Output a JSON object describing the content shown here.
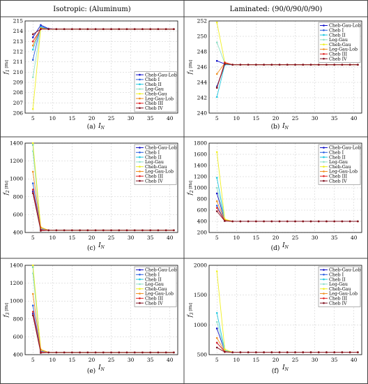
{
  "headers": [
    "Isotropic: (Aluminum)",
    "Laminated: (90/0/90/0/90)"
  ],
  "legend": [
    "Cheb-Gau-Lob",
    "Cheb I",
    "Cheb II",
    "Leg-Gau",
    "Cheb-Gau",
    "Leg-Gau-Lob",
    "Cheb III",
    "Cheb IV"
  ],
  "colors": [
    "#1010c8",
    "#2a5fe0",
    "#20c8e0",
    "#90e0c8",
    "#f0f020",
    "#f09020",
    "#e02020",
    "#801020"
  ],
  "chart_data": [
    {
      "type": "line",
      "panel_label": "(a)",
      "xlabel": "I_N",
      "ylabel": "f1 [Hz]",
      "xlim": [
        3,
        42
      ],
      "ylim": [
        206,
        215
      ],
      "xticks": [
        5,
        10,
        15,
        20,
        25,
        30,
        35,
        40
      ],
      "yticks": [
        206,
        207,
        208,
        209,
        210,
        211,
        212,
        213,
        214,
        215
      ],
      "legend_position": "bottom-right",
      "x": [
        5,
        7,
        9,
        11,
        13,
        15,
        17,
        19,
        21,
        23,
        25,
        27,
        29,
        31,
        33,
        35,
        37,
        39,
        41
      ],
      "series": [
        {
          "name": "Cheb-Gau-Lob",
          "start": [
            213.4,
            214.6,
            214.25
          ],
          "final": 214.2
        },
        {
          "name": "Cheb I",
          "start": [
            211.2,
            214.5,
            214.2
          ],
          "final": 214.2
        },
        {
          "name": "Cheb II",
          "start": [
            212.2,
            214.4,
            214.2
          ],
          "final": 214.2
        },
        {
          "name": "Leg-Gau",
          "start": [
            209.5,
            214.3,
            214.2
          ],
          "final": 214.2
        },
        {
          "name": "Cheb-Gau",
          "start": [
            206.4,
            214.3,
            214.2
          ],
          "final": 214.2
        },
        {
          "name": "Leg-Gau-Lob",
          "start": [
            212.6,
            214.3,
            214.2
          ],
          "final": 214.2
        },
        {
          "name": "Cheb III",
          "start": [
            213.0,
            214.2,
            214.2
          ],
          "final": 214.2
        },
        {
          "name": "Cheb IV",
          "start": [
            213.7,
            214.2,
            214.2
          ],
          "final": 214.2
        }
      ]
    },
    {
      "type": "line",
      "panel_label": "(b)",
      "xlabel": "I_N",
      "ylabel": "f1 [Hz]",
      "xlim": [
        3,
        42
      ],
      "ylim": [
        240,
        252
      ],
      "xticks": [
        5,
        10,
        15,
        20,
        25,
        30,
        35,
        40
      ],
      "yticks": [
        240,
        242,
        244,
        246,
        248,
        250,
        252
      ],
      "legend_position": "top-right",
      "x": [
        5,
        7,
        9,
        11,
        13,
        15,
        17,
        19,
        21,
        23,
        25,
        27,
        29,
        31,
        33,
        35,
        37,
        39,
        41
      ],
      "series": [
        {
          "name": "Cheb-Gau-Lob",
          "start": [
            246.8,
            246.4,
            246.3
          ],
          "final": 246.3
        },
        {
          "name": "Cheb I",
          "start": [
            243.5,
            246.3,
            246.3
          ],
          "final": 246.3
        },
        {
          "name": "Cheb II",
          "start": [
            242.1,
            246.3,
            246.3
          ],
          "final": 246.3
        },
        {
          "name": "Leg-Gau",
          "start": [
            249.2,
            246.5,
            246.3
          ],
          "final": 246.3
        },
        {
          "name": "Cheb-Gau",
          "start": [
            251.8,
            246.6,
            246.3
          ],
          "final": 246.3
        },
        {
          "name": "Leg-Gau-Lob",
          "start": [
            245.1,
            246.5,
            246.3
          ],
          "final": 246.3
        },
        {
          "name": "Cheb III",
          "start": [
            243.3,
            246.6,
            246.3
          ],
          "final": 246.3
        },
        {
          "name": "Cheb IV",
          "start": [
            243.3,
            246.4,
            246.3
          ],
          "final": 246.3
        }
      ]
    },
    {
      "type": "line",
      "panel_label": "(c)",
      "xlabel": "I_N",
      "ylabel": "f2 [Hz]",
      "xlim": [
        3,
        42
      ],
      "ylim": [
        400,
        1400
      ],
      "xticks": [
        5,
        10,
        15,
        20,
        25,
        30,
        35,
        40
      ],
      "yticks": [
        400,
        600,
        800,
        1000,
        1200,
        1400
      ],
      "legend_position": "top-right",
      "x": [
        5,
        7,
        9,
        11,
        13,
        15,
        17,
        19,
        21,
        23,
        25,
        27,
        29,
        31,
        33,
        35,
        37,
        39,
        41
      ],
      "series": [
        {
          "name": "Cheb-Gau-Lob",
          "start": [
            860,
            440,
            425
          ],
          "final": 425
        },
        {
          "name": "Cheb I",
          "start": [
            950,
            435,
            425
          ],
          "final": 425
        },
        {
          "name": "Cheb II",
          "start": [
            1380,
            450,
            425
          ],
          "final": 425
        },
        {
          "name": "Leg-Gau",
          "start": [
            1310,
            445,
            425
          ],
          "final": 425
        },
        {
          "name": "Cheb-Gau",
          "start": [
            1400,
            460,
            425
          ],
          "final": 425
        },
        {
          "name": "Leg-Gau-Lob",
          "start": [
            1080,
            455,
            425
          ],
          "final": 425
        },
        {
          "name": "Cheb III",
          "start": [
            880,
            430,
            425
          ],
          "final": 425
        },
        {
          "name": "Cheb IV",
          "start": [
            840,
            420,
            425
          ],
          "final": 425
        }
      ]
    },
    {
      "type": "line",
      "panel_label": "(d)",
      "xlabel": "I_N",
      "ylabel": "f2 [Hz]",
      "xlim": [
        3,
        42
      ],
      "ylim": [
        200,
        1800
      ],
      "xticks": [
        5,
        10,
        15,
        20,
        25,
        30,
        35,
        40
      ],
      "yticks": [
        200,
        400,
        600,
        800,
        1000,
        1200,
        1400,
        1600,
        1800
      ],
      "legend_position": "top-right",
      "x": [
        5,
        7,
        9,
        11,
        13,
        15,
        17,
        19,
        21,
        23,
        25,
        27,
        29,
        31,
        33,
        35,
        37,
        39,
        41
      ],
      "series": [
        {
          "name": "Cheb-Gau-Lob",
          "start": [
            900,
            420,
            400
          ],
          "final": 400
        },
        {
          "name": "Cheb I",
          "start": [
            680,
            410,
            400
          ],
          "final": 400
        },
        {
          "name": "Cheb II",
          "start": [
            1180,
            430,
            400
          ],
          "final": 400
        },
        {
          "name": "Leg-Gau",
          "start": [
            1000,
            430,
            400
          ],
          "final": 400
        },
        {
          "name": "Cheb-Gau",
          "start": [
            1640,
            440,
            400
          ],
          "final": 400
        },
        {
          "name": "Leg-Gau-Lob",
          "start": [
            760,
            420,
            400
          ],
          "final": 400
        },
        {
          "name": "Cheb III",
          "start": [
            640,
            410,
            400
          ],
          "final": 400
        },
        {
          "name": "Cheb IV",
          "start": [
            580,
            405,
            400
          ],
          "final": 400
        }
      ]
    },
    {
      "type": "line",
      "panel_label": "(e)",
      "xlabel": "I_N",
      "ylabel": "f3 [Hz]",
      "xlim": [
        3,
        42
      ],
      "ylim": [
        400,
        1400
      ],
      "xticks": [
        5,
        10,
        15,
        20,
        25,
        30,
        35,
        40
      ],
      "yticks": [
        400,
        600,
        800,
        1000,
        1200,
        1400
      ],
      "legend_position": "top-right",
      "x": [
        5,
        7,
        9,
        11,
        13,
        15,
        17,
        19,
        21,
        23,
        25,
        27,
        29,
        31,
        33,
        35,
        37,
        39,
        41
      ],
      "series": [
        {
          "name": "Cheb-Gau-Lob",
          "start": [
            860,
            440,
            425
          ],
          "final": 425
        },
        {
          "name": "Cheb I",
          "start": [
            950,
            435,
            425
          ],
          "final": 425
        },
        {
          "name": "Cheb II",
          "start": [
            1380,
            450,
            425
          ],
          "final": 425
        },
        {
          "name": "Leg-Gau",
          "start": [
            1310,
            445,
            425
          ],
          "final": 425
        },
        {
          "name": "Cheb-Gau",
          "start": [
            1400,
            460,
            425
          ],
          "final": 425
        },
        {
          "name": "Leg-Gau-Lob",
          "start": [
            1080,
            455,
            425
          ],
          "final": 425
        },
        {
          "name": "Cheb III",
          "start": [
            880,
            430,
            425
          ],
          "final": 425
        },
        {
          "name": "Cheb IV",
          "start": [
            840,
            420,
            425
          ],
          "final": 425
        }
      ]
    },
    {
      "type": "line",
      "panel_label": "(f)",
      "xlabel": "I_N",
      "ylabel": "f3 [Hz]",
      "xlim": [
        3,
        42
      ],
      "ylim": [
        500,
        2000
      ],
      "xticks": [
        5,
        10,
        15,
        20,
        25,
        30,
        35,
        40
      ],
      "yticks": [
        500,
        1000,
        1500,
        2000
      ],
      "legend_position": "top-right",
      "x": [
        5,
        7,
        9,
        11,
        13,
        15,
        17,
        19,
        21,
        23,
        25,
        27,
        29,
        31,
        33,
        35,
        37,
        39,
        41
      ],
      "series": [
        {
          "name": "Cheb-Gau-Lob",
          "start": [
            940,
            560,
            540
          ],
          "final": 540
        },
        {
          "name": "Cheb I",
          "start": [
            700,
            550,
            540
          ],
          "final": 540
        },
        {
          "name": "Cheb II",
          "start": [
            1200,
            570,
            540
          ],
          "final": 540
        },
        {
          "name": "Leg-Gau",
          "start": [
            1050,
            560,
            540
          ],
          "final": 540
        },
        {
          "name": "Cheb-Gau",
          "start": [
            1900,
            590,
            540
          ],
          "final": 540
        },
        {
          "name": "Leg-Gau-Lob",
          "start": [
            780,
            555,
            540
          ],
          "final": 540
        },
        {
          "name": "Cheb III",
          "start": [
            700,
            550,
            540
          ],
          "final": 540
        },
        {
          "name": "Cheb IV",
          "start": [
            620,
            545,
            540
          ],
          "final": 540
        }
      ]
    }
  ]
}
